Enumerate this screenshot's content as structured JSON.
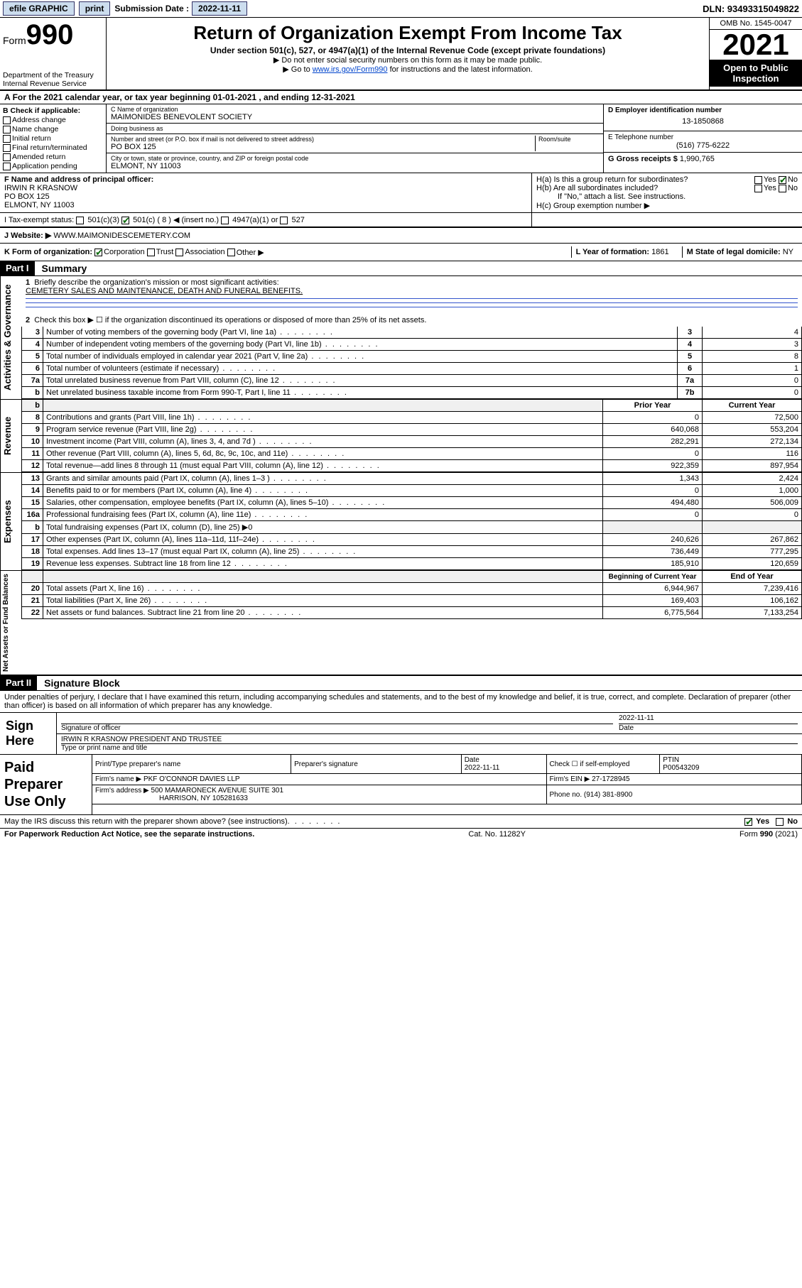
{
  "topbar": {
    "efile": "efile GRAPHIC",
    "print": "print",
    "sub_label": "Submission Date :",
    "sub_date": "2022-11-11",
    "dln": "DLN: 93493315049822"
  },
  "header": {
    "form": "Form",
    "form_no": "990",
    "dept": "Department of the Treasury\nInternal Revenue Service",
    "title": "Return of Organization Exempt From Income Tax",
    "sub1": "Under section 501(c), 527, or 4947(a)(1) of the Internal Revenue Code (except private foundations)",
    "sub2": "▶ Do not enter social security numbers on this form as it may be made public.",
    "sub3_pre": "▶ Go to ",
    "sub3_link": "www.irs.gov/Form990",
    "sub3_post": " for instructions and the latest information.",
    "omb": "OMB No. 1545-0047",
    "year": "2021",
    "inspect": "Open to Public Inspection"
  },
  "A": "For the 2021 calendar year, or tax year beginning 01-01-2021   , and ending 12-31-2021",
  "B": {
    "hdr": "B Check if applicable:",
    "items": [
      "Address change",
      "Name change",
      "Initial return",
      "Final return/terminated",
      "Amended return",
      "Application pending"
    ]
  },
  "C": {
    "name_lbl": "C Name of organization",
    "name": "MAIMONIDES BENEVOLENT SOCIETY",
    "dba_lbl": "Doing business as",
    "dba": "",
    "addr_lbl": "Number and street (or P.O. box if mail is not delivered to street address)",
    "room_lbl": "Room/suite",
    "addr": "PO BOX 125",
    "city_lbl": "City or town, state or province, country, and ZIP or foreign postal code",
    "city": "ELMONT, NY  11003"
  },
  "D": {
    "lbl": "D Employer identification number",
    "val": "13-1850868"
  },
  "E": {
    "lbl": "E Telephone number",
    "val": "(516) 775-6222"
  },
  "G": {
    "lbl": "G Gross receipts $",
    "val": "1,990,765"
  },
  "F": {
    "lbl": "F  Name and address of principal officer:",
    "name": "IRWIN R KRASNOW",
    "addr1": "PO BOX 125",
    "addr2": "ELMONT, NY  11003"
  },
  "H": {
    "a": "H(a)  Is this a group return for subordinates?",
    "a_yes": "Yes",
    "a_no": "No",
    "b": "H(b)  Are all subordinates included?",
    "b_yes": "Yes",
    "b_no": "No",
    "note": "If \"No,\" attach a list. See instructions.",
    "c": "H(c)  Group exemption number ▶"
  },
  "I": {
    "lbl": "I     Tax-exempt status:",
    "c3": "501(c)(3)",
    "c": "501(c) ( 8 ) ◀ (insert no.)",
    "a1": "4947(a)(1) or",
    "527": "527"
  },
  "J": {
    "lbl": "J    Website: ▶",
    "val": "WWW.MAIMONIDESCEMETERY.COM"
  },
  "K": {
    "lbl": "K Form of organization:",
    "opts": [
      "Corporation",
      "Trust",
      "Association",
      "Other ▶"
    ],
    "L_lbl": "L Year of formation:",
    "L_val": "1861",
    "M_lbl": "M State of legal domicile:",
    "M_val": "NY"
  },
  "part1": {
    "hdr": "Part I",
    "title": "Summary",
    "l1_lbl": "Briefly describe the organization's mission or most significant activities:",
    "l1_val": "CEMETERY SALES AND MAINTENANCE, DEATH AND FUNERAL BENEFITS.",
    "l2": "Check this box ▶ ☐  if the organization discontinued its operations or disposed of more than 25% of its net assets.",
    "gov": [
      {
        "n": "3",
        "t": "Number of voting members of the governing body (Part VI, line 1a)",
        "b": "3",
        "v": "4"
      },
      {
        "n": "4",
        "t": "Number of independent voting members of the governing body (Part VI, line 1b)",
        "b": "4",
        "v": "3"
      },
      {
        "n": "5",
        "t": "Total number of individuals employed in calendar year 2021 (Part V, line 2a)",
        "b": "5",
        "v": "8"
      },
      {
        "n": "6",
        "t": "Total number of volunteers (estimate if necessary)",
        "b": "6",
        "v": "1"
      },
      {
        "n": "7a",
        "t": "Total unrelated business revenue from Part VIII, column (C), line 12",
        "b": "7a",
        "v": "0"
      },
      {
        "n": "b",
        "t": "Net unrelated business taxable income from Form 990-T, Part I, line 11",
        "b": "7b",
        "v": "0"
      }
    ],
    "col_prior": "Prior Year",
    "col_curr": "Current Year",
    "rev": [
      {
        "n": "8",
        "t": "Contributions and grants (Part VIII, line 1h)",
        "p": "0",
        "c": "72,500"
      },
      {
        "n": "9",
        "t": "Program service revenue (Part VIII, line 2g)",
        "p": "640,068",
        "c": "553,204"
      },
      {
        "n": "10",
        "t": "Investment income (Part VIII, column (A), lines 3, 4, and 7d )",
        "p": "282,291",
        "c": "272,134"
      },
      {
        "n": "11",
        "t": "Other revenue (Part VIII, column (A), lines 5, 6d, 8c, 9c, 10c, and 11e)",
        "p": "0",
        "c": "116"
      },
      {
        "n": "12",
        "t": "Total revenue—add lines 8 through 11 (must equal Part VIII, column (A), line 12)",
        "p": "922,359",
        "c": "897,954"
      }
    ],
    "exp": [
      {
        "n": "13",
        "t": "Grants and similar amounts paid (Part IX, column (A), lines 1–3 )",
        "p": "1,343",
        "c": "2,424"
      },
      {
        "n": "14",
        "t": "Benefits paid to or for members (Part IX, column (A), line 4)",
        "p": "0",
        "c": "1,000"
      },
      {
        "n": "15",
        "t": "Salaries, other compensation, employee benefits (Part IX, column (A), lines 5–10)",
        "p": "494,480",
        "c": "506,009"
      },
      {
        "n": "16a",
        "t": "Professional fundraising fees (Part IX, column (A), line 11e)",
        "p": "0",
        "c": "0"
      },
      {
        "n": "b",
        "t": "Total fundraising expenses (Part IX, column (D), line 25) ▶0",
        "p": "",
        "c": "",
        "shade": true
      },
      {
        "n": "17",
        "t": "Other expenses (Part IX, column (A), lines 11a–11d, 11f–24e)",
        "p": "240,626",
        "c": "267,862"
      },
      {
        "n": "18",
        "t": "Total expenses. Add lines 13–17 (must equal Part IX, column (A), line 25)",
        "p": "736,449",
        "c": "777,295"
      },
      {
        "n": "19",
        "t": "Revenue less expenses. Subtract line 18 from line 12",
        "p": "185,910",
        "c": "120,659"
      }
    ],
    "col_beg": "Beginning of Current Year",
    "col_end": "End of Year",
    "net": [
      {
        "n": "20",
        "t": "Total assets (Part X, line 16)",
        "p": "6,944,967",
        "c": "7,239,416"
      },
      {
        "n": "21",
        "t": "Total liabilities (Part X, line 26)",
        "p": "169,403",
        "c": "106,162"
      },
      {
        "n": "22",
        "t": "Net assets or fund balances. Subtract line 21 from line 20",
        "p": "6,775,564",
        "c": "7,133,254"
      }
    ]
  },
  "part2": {
    "hdr": "Part II",
    "title": "Signature Block",
    "decl": "Under penalties of perjury, I declare that I have examined this return, including accompanying schedules and statements, and to the best of my knowledge and belief, it is true, correct, and complete. Declaration of preparer (other than officer) is based on all information of which preparer has any knowledge.",
    "sign_here": "Sign Here",
    "sig_lbl": "Signature of officer",
    "date_lbl": "Date",
    "date_val": "2022-11-11",
    "name_lbl": "Type or print name and title",
    "name_val": "IRWIN R KRASNOW  PRESIDENT AND TRUSTEE",
    "paid": "Paid Preparer Use Only",
    "p_name_lbl": "Print/Type preparer's name",
    "p_sig_lbl": "Preparer's signature",
    "p_date_lbl": "Date",
    "p_date": "2022-11-11",
    "p_check": "Check ☐ if self-employed",
    "ptin_lbl": "PTIN",
    "ptin": "P00543209",
    "firm_lbl": "Firm's name    ▶",
    "firm": "PKF O'CONNOR DAVIES LLP",
    "ein_lbl": "Firm's EIN ▶",
    "ein": "27-1728945",
    "faddr_lbl": "Firm's address ▶",
    "faddr1": "500 MAMARONECK AVENUE SUITE 301",
    "faddr2": "HARRISON, NY  105281633",
    "phone_lbl": "Phone no.",
    "phone": "(914) 381-8900",
    "discuss": "May the IRS discuss this return with the preparer shown above? (see instructions)",
    "d_yes": "Yes",
    "d_no": "No"
  },
  "footer": {
    "l": "For Paperwork Reduction Act Notice, see the separate instructions.",
    "m": "Cat. No. 11282Y",
    "r": "Form 990 (2021)"
  }
}
